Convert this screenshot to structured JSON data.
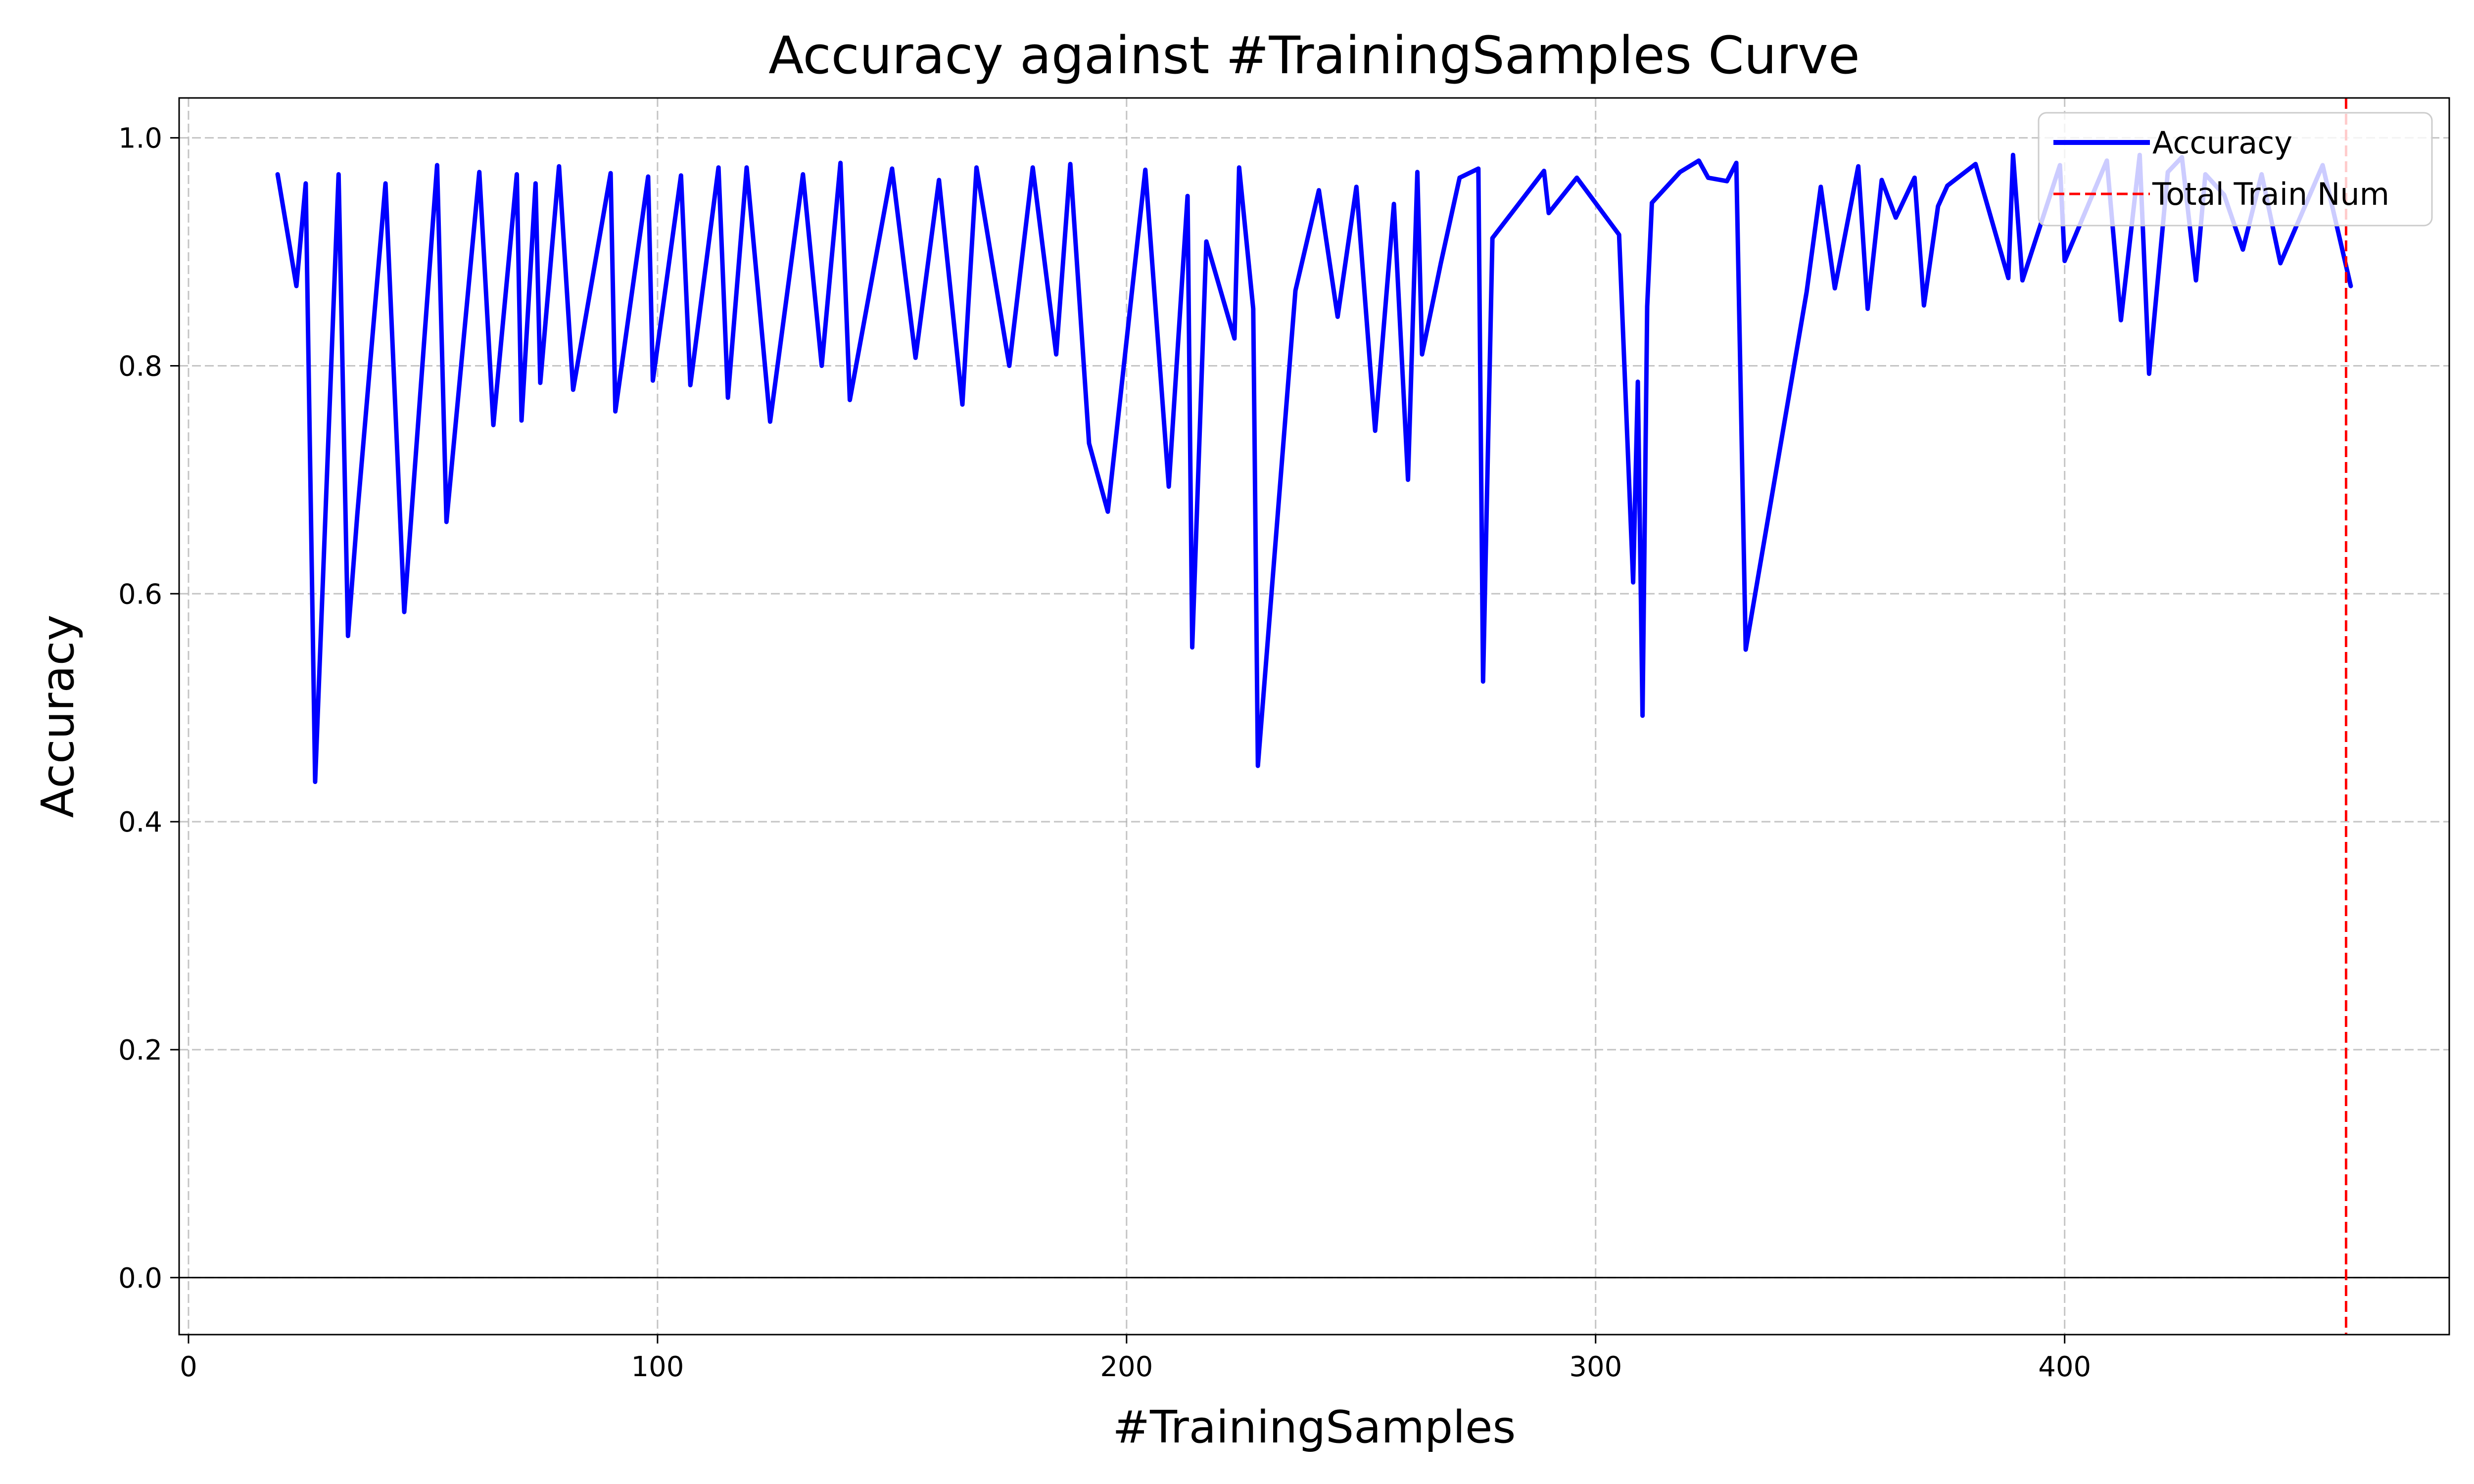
{
  "chart_data": {
    "type": "line",
    "title": "Accuracy against #TrainingSamples Curve",
    "xlabel": "#TrainingSamples",
    "ylabel": "Accuracy",
    "xlim": [
      -2,
      482
    ],
    "ylim": [
      -0.05,
      1.035
    ],
    "xticks": [
      0,
      100,
      200,
      300,
      400
    ],
    "yticks": [
      0.0,
      0.2,
      0.4,
      0.6,
      0.8,
      1.0
    ],
    "xtick_labels": [
      "0",
      "100",
      "200",
      "300",
      "400"
    ],
    "ytick_labels": [
      "0.0",
      "0.2",
      "0.4",
      "0.6",
      "0.8",
      "1.0"
    ],
    "grid": true,
    "legend_position": "top-right",
    "colors": {
      "series": "#0000ff",
      "reference": "#ff0000",
      "grid": "#b0b0b0",
      "zero_line": "#000000"
    },
    "series": [
      {
        "name": "Accuracy",
        "x": [
          19,
          23,
          25,
          27,
          32,
          34,
          36,
          42,
          46,
          53,
          55,
          62,
          65,
          70,
          71,
          74,
          75,
          79,
          82,
          90,
          91,
          98,
          99,
          105,
          107,
          113,
          115,
          119,
          124,
          131,
          135,
          139,
          141,
          150,
          155,
          160,
          165,
          168,
          175,
          180,
          185,
          188,
          192,
          196,
          204,
          209,
          213,
          214,
          217,
          223,
          224,
          227,
          228,
          236,
          241,
          245,
          249,
          253,
          257,
          260,
          262,
          263,
          267,
          271,
          275,
          276,
          278,
          289,
          290,
          296,
          305,
          308,
          309,
          310,
          311,
          312,
          318,
          322,
          324,
          328,
          330,
          332,
          345,
          348,
          351,
          356,
          358,
          361,
          364,
          368,
          370,
          373,
          375,
          381,
          388,
          389,
          391,
          399,
          400,
          409,
          412,
          416,
          418,
          422,
          425,
          428,
          430,
          434,
          438,
          442,
          446,
          455,
          461
        ],
        "values": [
          0.968,
          0.87,
          0.96,
          0.435,
          0.968,
          0.563,
          0.67,
          0.96,
          0.584,
          0.976,
          0.663,
          0.97,
          0.748,
          0.968,
          0.752,
          0.96,
          0.785,
          0.975,
          0.779,
          0.969,
          0.76,
          0.966,
          0.787,
          0.967,
          0.783,
          0.974,
          0.772,
          0.974,
          0.751,
          0.968,
          0.8,
          0.978,
          0.77,
          0.973,
          0.807,
          0.963,
          0.766,
          0.974,
          0.8,
          0.974,
          0.81,
          0.977,
          0.732,
          0.672,
          0.972,
          0.694,
          0.949,
          0.553,
          0.909,
          0.824,
          0.974,
          0.85,
          0.449,
          0.866,
          0.954,
          0.843,
          0.957,
          0.743,
          0.942,
          0.7,
          0.97,
          0.81,
          0.89,
          0.965,
          0.973,
          0.523,
          0.912,
          0.971,
          0.934,
          0.965,
          0.915,
          0.61,
          0.786,
          0.493,
          0.852,
          0.943,
          0.97,
          0.98,
          0.965,
          0.962,
          0.978,
          0.551,
          0.865,
          0.957,
          0.868,
          0.975,
          0.85,
          0.963,
          0.93,
          0.965,
          0.853,
          0.94,
          0.958,
          0.977,
          0.877,
          0.985,
          0.875,
          0.976,
          0.892,
          0.98,
          0.84,
          0.985,
          0.793,
          0.97,
          0.983,
          0.875,
          0.968,
          0.95,
          0.902,
          0.968,
          0.89,
          0.976,
          0.87
        ]
      }
    ],
    "reference_line": {
      "name": "Total Train Num",
      "x": 460,
      "style": "dashed"
    }
  }
}
